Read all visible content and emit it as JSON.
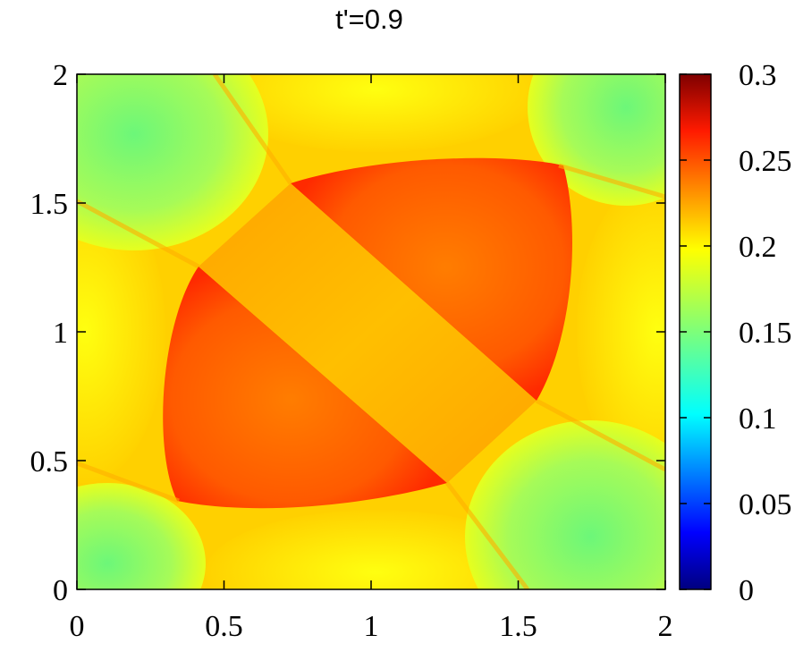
{
  "chart_data": {
    "type": "heatmap",
    "title": "t'=0.9",
    "xlim": [
      0,
      2
    ],
    "ylim": [
      0,
      2
    ],
    "x_ticks": [
      "0",
      "0.5",
      "1",
      "1.5",
      "2"
    ],
    "y_ticks": [
      "0",
      "0.5",
      "1",
      "1.5",
      "2"
    ],
    "colorbar": {
      "range": [
        0,
        0.3
      ],
      "ticks": [
        "0",
        "0.05",
        "0.1",
        "0.15",
        "0.2",
        "0.25",
        "0.3"
      ],
      "colormap": "jet"
    },
    "regions": [
      {
        "value": 0.15,
        "location": "corners (0,0),(0,2),(2,0),(2,2)"
      },
      {
        "value": 0.19,
        "location": "edge bands between corners"
      },
      {
        "value": 0.21,
        "location": "diagonal band from (0.4,1.25) to (1.6,0.75)"
      },
      {
        "value": 0.24,
        "location": "lower-left half of central oval"
      },
      {
        "value": 0.24,
        "location": "upper-right half of central oval"
      }
    ],
    "grid": false,
    "legend": "colorbar right"
  }
}
